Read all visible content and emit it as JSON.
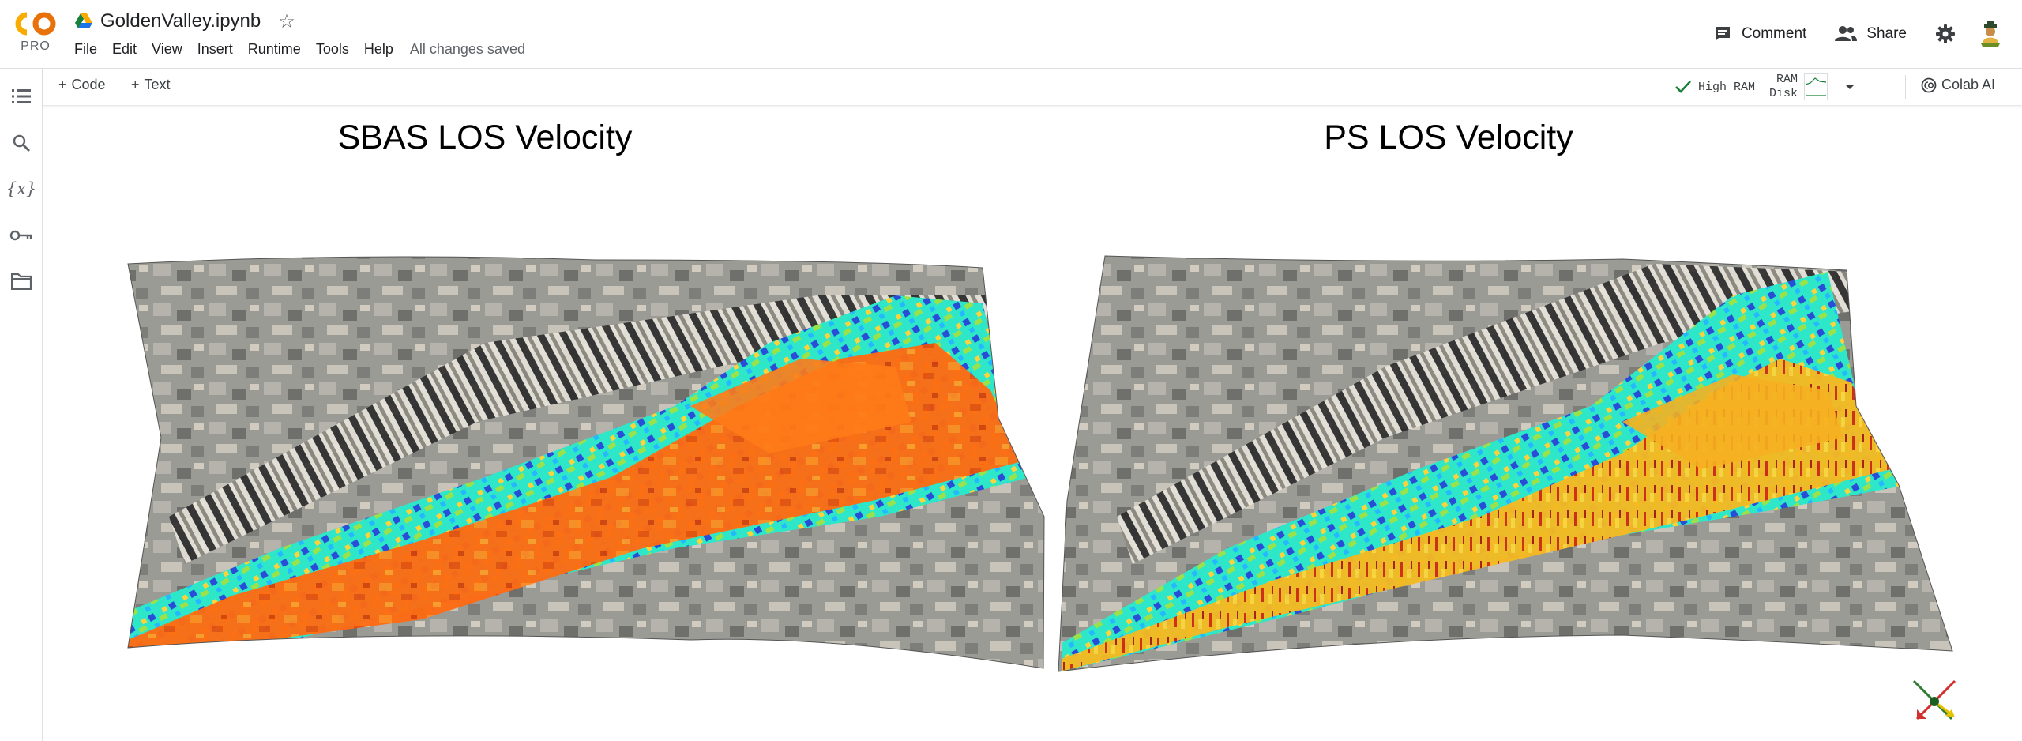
{
  "app": {
    "logo_text": "PRO",
    "notebook_name": "GoldenValley.ipynb",
    "menu": [
      "File",
      "Edit",
      "View",
      "Insert",
      "Runtime",
      "Tools",
      "Help"
    ],
    "save_status": "All changes saved",
    "comment_label": "Comment",
    "share_label": "Share"
  },
  "toolbar": {
    "code_label": "Code",
    "text_label": "Text",
    "runtime_status": "High RAM",
    "ram_label": "RAM",
    "disk_label": "Disk",
    "colab_ai_label": "Colab AI"
  },
  "sidebar": {
    "items": [
      "table-of-contents-icon",
      "search-icon",
      "variables-icon",
      "secrets-key-icon",
      "files-folder-icon"
    ],
    "variables_glyph": "{x}"
  },
  "output": {
    "plots": [
      {
        "title": "SBAS LOS Velocity",
        "dominant_color": "#ff6a10"
      },
      {
        "title": "PS LOS Velocity",
        "dominant_color": "#f7b820"
      }
    ]
  },
  "colors": {
    "accent_orange": "#f9ab00",
    "ok_green": "#188038",
    "icon_gray": "#5f6368"
  }
}
